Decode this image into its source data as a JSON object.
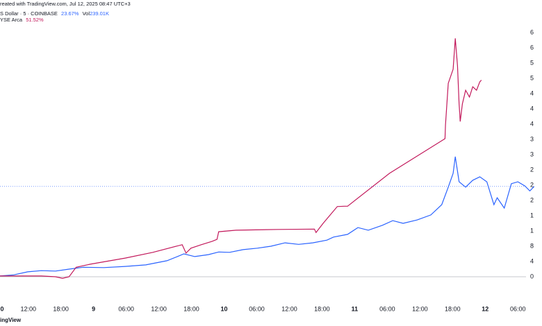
{
  "chart_data": {
    "type": "line",
    "header": "reated with TradingView.com, Jul 12, 2025 08:47 UTC+3",
    "volume_label": "Vol",
    "volume": "239.01K",
    "watermark": "ingView",
    "legend_values": [
      "23.67%",
      "51.52%"
    ],
    "xlim": [
      6.8,
      105.8
    ],
    "ylim": [
      -4,
      72
    ],
    "xticks": [
      {
        "value": 6,
        "label": "0"
      },
      {
        "value": 12,
        "label": "12:00"
      },
      {
        "value": 18,
        "label": "18:00"
      },
      {
        "value": 24,
        "label": "9"
      },
      {
        "value": 30,
        "label": "06:00"
      },
      {
        "value": 36,
        "label": "12:00"
      },
      {
        "value": 42,
        "label": "18:00"
      },
      {
        "value": 48,
        "label": "10"
      },
      {
        "value": 54,
        "label": "06:00"
      },
      {
        "value": 60,
        "label": "12:00"
      },
      {
        "value": 66,
        "label": "18:00"
      },
      {
        "value": 72,
        "label": "11"
      },
      {
        "value": 78,
        "label": "06:00"
      },
      {
        "value": 84,
        "label": "12:00"
      },
      {
        "value": 90,
        "label": "18:00"
      },
      {
        "value": 96,
        "label": "12"
      },
      {
        "value": 102,
        "label": "06:00"
      }
    ],
    "yticks": [
      0,
      4,
      8,
      {
        "value": 12,
        "label": "1"
      },
      {
        "value": 16,
        "label": "1"
      },
      {
        "value": 20,
        "label": "2"
      },
      {
        "value": 24,
        "label": "2"
      },
      {
        "value": 28,
        "label": "2"
      },
      {
        "value": 32,
        "label": "3"
      },
      {
        "value": 36,
        "label": "3"
      },
      {
        "value": 40,
        "label": "4"
      },
      {
        "value": 44,
        "label": "4"
      },
      {
        "value": 48,
        "label": "4"
      },
      {
        "value": 52,
        "label": "5"
      },
      {
        "value": 56,
        "label": "5"
      },
      {
        "value": 60,
        "label": "6"
      },
      {
        "value": 64,
        "label": "6"
      }
    ],
    "grid": false,
    "series": [
      {
        "name": "S Dollar · 5 · COINBASE",
        "color": "#2962ff",
        "x": [
          6.8,
          9.3,
          11.9,
          14.4,
          17.0,
          19.5,
          22.1,
          25.9,
          29.8,
          33.6,
          37.5,
          39.4,
          40.6,
          42.6,
          45.1,
          47.0,
          49.0,
          51.5,
          54.1,
          56.6,
          59.2,
          61.7,
          64.3,
          66.9,
          68.1,
          70.7,
          72.6,
          74.5,
          77.1,
          79.0,
          80.9,
          83.5,
          86.0,
          88.0,
          89.2,
          90.1,
          90.5,
          91.2,
          92.4,
          93.7,
          95.0,
          96.3,
          97.6,
          98.2,
          99.5,
          100.8,
          102.0,
          103.3,
          104.2,
          105.0
        ],
        "values": [
          0.2,
          0.5,
          1.3,
          1.6,
          1.5,
          2.0,
          2.5,
          2.4,
          2.7,
          3.1,
          4.2,
          5.3,
          6.0,
          5.3,
          5.8,
          6.5,
          6.4,
          7.1,
          7.5,
          8.0,
          8.9,
          8.5,
          8.9,
          9.6,
          10.4,
          11.1,
          12.9,
          12.2,
          13.5,
          14.7,
          14.0,
          14.9,
          16.2,
          18.9,
          23.5,
          27.1,
          31.5,
          24.9,
          23.5,
          25.3,
          26.2,
          24.9,
          18.9,
          20.7,
          18.0,
          24.4,
          24.9,
          23.8,
          22.5,
          23.67
        ]
      },
      {
        "name": "YSE Arca",
        "color": "#c2185b",
        "x": [
          6.8,
          10.6,
          14.4,
          17.0,
          18.3,
          19.5,
          20.8,
          23.4,
          29.8,
          34.9,
          40.3,
          41.0,
          41.9,
          43.8,
          45.8,
          46.7,
          47.0,
          50.2,
          57.9,
          64.6,
          64.9,
          66.2,
          67.5,
          68.8,
          70.1,
          70.7,
          78.4,
          88.6,
          88.7,
          89.2,
          90.1,
          90.5,
          90.9,
          91.2,
          91.4,
          91.8,
          92.4,
          93.1,
          93.7,
          94.4,
          95.0,
          95.3
        ],
        "values": [
          0.2,
          0.2,
          0.2,
          0,
          -0.4,
          0,
          2.5,
          3.3,
          4.9,
          6.4,
          8.4,
          6.2,
          7.5,
          8.4,
          9.3,
          9.8,
          11.8,
          12.2,
          12.4,
          12.5,
          11.6,
          14.0,
          16.2,
          18.4,
          18.5,
          18.5,
          27.1,
          36.2,
          39.8,
          50.7,
          54.4,
          62.5,
          55.3,
          45.3,
          40.7,
          45.3,
          48.9,
          47.1,
          49.8,
          48.9,
          51.1,
          51.52
        ]
      }
    ]
  }
}
